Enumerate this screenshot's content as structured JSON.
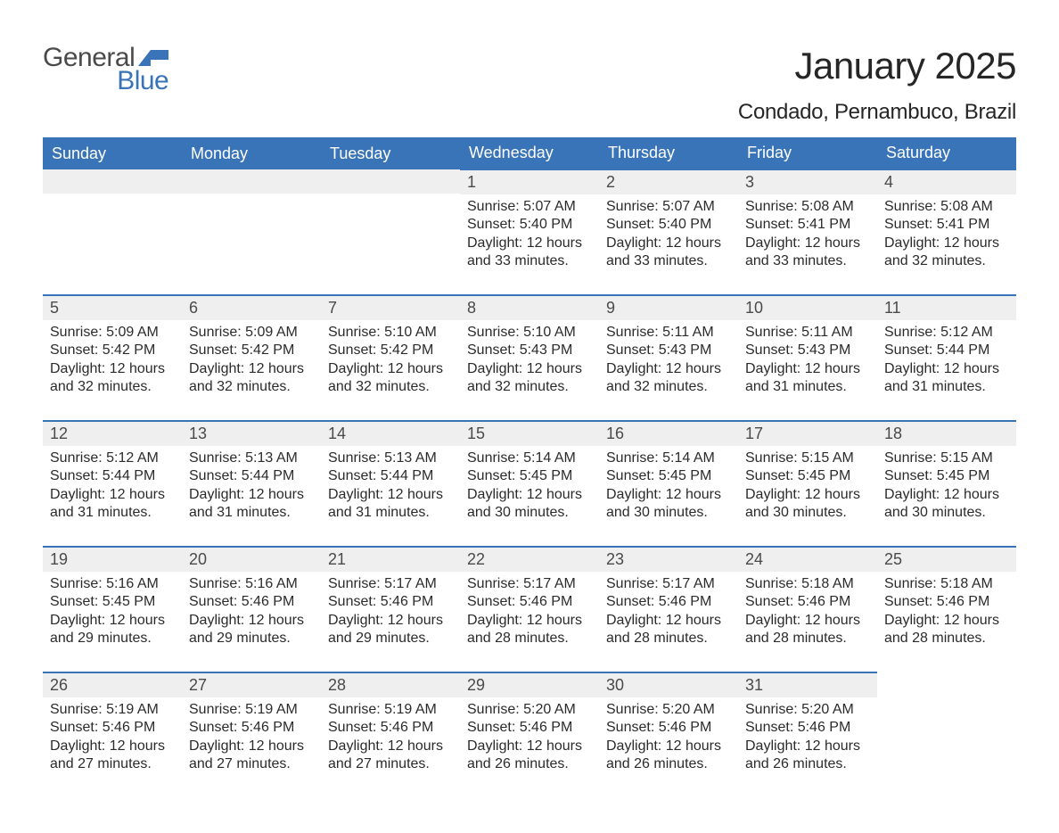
{
  "logo": {
    "word1": "General",
    "word2": "Blue",
    "flag_color": "#3a74b8"
  },
  "title": "January 2025",
  "location": "Condado, Pernambuco, Brazil",
  "colors": {
    "header_bg": "#3a74b8",
    "header_text": "#ffffff",
    "daynum_bg": "#efefef",
    "cell_top_border": "#3a74b8",
    "body_text": "#2b2b2b"
  },
  "weekdays": [
    "Sunday",
    "Monday",
    "Tuesday",
    "Wednesday",
    "Thursday",
    "Friday",
    "Saturday"
  ],
  "weeks": [
    [
      null,
      null,
      null,
      {
        "n": "1",
        "sunrise": "Sunrise: 5:07 AM",
        "sunset": "Sunset: 5:40 PM",
        "daylight": "Daylight: 12 hours and 33 minutes."
      },
      {
        "n": "2",
        "sunrise": "Sunrise: 5:07 AM",
        "sunset": "Sunset: 5:40 PM",
        "daylight": "Daylight: 12 hours and 33 minutes."
      },
      {
        "n": "3",
        "sunrise": "Sunrise: 5:08 AM",
        "sunset": "Sunset: 5:41 PM",
        "daylight": "Daylight: 12 hours and 33 minutes."
      },
      {
        "n": "4",
        "sunrise": "Sunrise: 5:08 AM",
        "sunset": "Sunset: 5:41 PM",
        "daylight": "Daylight: 12 hours and 32 minutes."
      }
    ],
    [
      {
        "n": "5",
        "sunrise": "Sunrise: 5:09 AM",
        "sunset": "Sunset: 5:42 PM",
        "daylight": "Daylight: 12 hours and 32 minutes."
      },
      {
        "n": "6",
        "sunrise": "Sunrise: 5:09 AM",
        "sunset": "Sunset: 5:42 PM",
        "daylight": "Daylight: 12 hours and 32 minutes."
      },
      {
        "n": "7",
        "sunrise": "Sunrise: 5:10 AM",
        "sunset": "Sunset: 5:42 PM",
        "daylight": "Daylight: 12 hours and 32 minutes."
      },
      {
        "n": "8",
        "sunrise": "Sunrise: 5:10 AM",
        "sunset": "Sunset: 5:43 PM",
        "daylight": "Daylight: 12 hours and 32 minutes."
      },
      {
        "n": "9",
        "sunrise": "Sunrise: 5:11 AM",
        "sunset": "Sunset: 5:43 PM",
        "daylight": "Daylight: 12 hours and 32 minutes."
      },
      {
        "n": "10",
        "sunrise": "Sunrise: 5:11 AM",
        "sunset": "Sunset: 5:43 PM",
        "daylight": "Daylight: 12 hours and 31 minutes."
      },
      {
        "n": "11",
        "sunrise": "Sunrise: 5:12 AM",
        "sunset": "Sunset: 5:44 PM",
        "daylight": "Daylight: 12 hours and 31 minutes."
      }
    ],
    [
      {
        "n": "12",
        "sunrise": "Sunrise: 5:12 AM",
        "sunset": "Sunset: 5:44 PM",
        "daylight": "Daylight: 12 hours and 31 minutes."
      },
      {
        "n": "13",
        "sunrise": "Sunrise: 5:13 AM",
        "sunset": "Sunset: 5:44 PM",
        "daylight": "Daylight: 12 hours and 31 minutes."
      },
      {
        "n": "14",
        "sunrise": "Sunrise: 5:13 AM",
        "sunset": "Sunset: 5:44 PM",
        "daylight": "Daylight: 12 hours and 31 minutes."
      },
      {
        "n": "15",
        "sunrise": "Sunrise: 5:14 AM",
        "sunset": "Sunset: 5:45 PM",
        "daylight": "Daylight: 12 hours and 30 minutes."
      },
      {
        "n": "16",
        "sunrise": "Sunrise: 5:14 AM",
        "sunset": "Sunset: 5:45 PM",
        "daylight": "Daylight: 12 hours and 30 minutes."
      },
      {
        "n": "17",
        "sunrise": "Sunrise: 5:15 AM",
        "sunset": "Sunset: 5:45 PM",
        "daylight": "Daylight: 12 hours and 30 minutes."
      },
      {
        "n": "18",
        "sunrise": "Sunrise: 5:15 AM",
        "sunset": "Sunset: 5:45 PM",
        "daylight": "Daylight: 12 hours and 30 minutes."
      }
    ],
    [
      {
        "n": "19",
        "sunrise": "Sunrise: 5:16 AM",
        "sunset": "Sunset: 5:45 PM",
        "daylight": "Daylight: 12 hours and 29 minutes."
      },
      {
        "n": "20",
        "sunrise": "Sunrise: 5:16 AM",
        "sunset": "Sunset: 5:46 PM",
        "daylight": "Daylight: 12 hours and 29 minutes."
      },
      {
        "n": "21",
        "sunrise": "Sunrise: 5:17 AM",
        "sunset": "Sunset: 5:46 PM",
        "daylight": "Daylight: 12 hours and 29 minutes."
      },
      {
        "n": "22",
        "sunrise": "Sunrise: 5:17 AM",
        "sunset": "Sunset: 5:46 PM",
        "daylight": "Daylight: 12 hours and 28 minutes."
      },
      {
        "n": "23",
        "sunrise": "Sunrise: 5:17 AM",
        "sunset": "Sunset: 5:46 PM",
        "daylight": "Daylight: 12 hours and 28 minutes."
      },
      {
        "n": "24",
        "sunrise": "Sunrise: 5:18 AM",
        "sunset": "Sunset: 5:46 PM",
        "daylight": "Daylight: 12 hours and 28 minutes."
      },
      {
        "n": "25",
        "sunrise": "Sunrise: 5:18 AM",
        "sunset": "Sunset: 5:46 PM",
        "daylight": "Daylight: 12 hours and 28 minutes."
      }
    ],
    [
      {
        "n": "26",
        "sunrise": "Sunrise: 5:19 AM",
        "sunset": "Sunset: 5:46 PM",
        "daylight": "Daylight: 12 hours and 27 minutes."
      },
      {
        "n": "27",
        "sunrise": "Sunrise: 5:19 AM",
        "sunset": "Sunset: 5:46 PM",
        "daylight": "Daylight: 12 hours and 27 minutes."
      },
      {
        "n": "28",
        "sunrise": "Sunrise: 5:19 AM",
        "sunset": "Sunset: 5:46 PM",
        "daylight": "Daylight: 12 hours and 27 minutes."
      },
      {
        "n": "29",
        "sunrise": "Sunrise: 5:20 AM",
        "sunset": "Sunset: 5:46 PM",
        "daylight": "Daylight: 12 hours and 26 minutes."
      },
      {
        "n": "30",
        "sunrise": "Sunrise: 5:20 AM",
        "sunset": "Sunset: 5:46 PM",
        "daylight": "Daylight: 12 hours and 26 minutes."
      },
      {
        "n": "31",
        "sunrise": "Sunrise: 5:20 AM",
        "sunset": "Sunset: 5:46 PM",
        "daylight": "Daylight: 12 hours and 26 minutes."
      },
      null
    ]
  ]
}
